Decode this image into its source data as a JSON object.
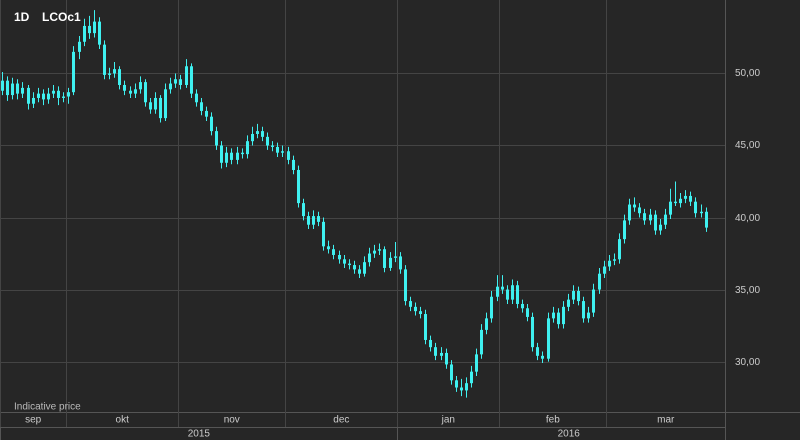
{
  "chart_data": {
    "type": "candlestick",
    "interval": "1D",
    "symbol": "LCOc1",
    "note": "Indicative price",
    "color": "#3ff0f0",
    "xlim": [
      -0.4,
      141.8
    ],
    "ylim": [
      26.5,
      55.1
    ],
    "yticks": [
      {
        "value": 30,
        "label": "30,00"
      },
      {
        "value": 35,
        "label": "35,00"
      },
      {
        "value": 40,
        "label": "40,00"
      },
      {
        "value": 45,
        "label": "45,00"
      },
      {
        "value": 50,
        "label": "50,00"
      }
    ],
    "xticks": [
      {
        "value": 0,
        "label": "sep"
      },
      {
        "value": 13,
        "label": "okt"
      },
      {
        "value": 35,
        "label": "nov"
      },
      {
        "value": 56,
        "label": "dec"
      },
      {
        "value": 78,
        "label": "jan"
      },
      {
        "value": 98,
        "label": "feb"
      },
      {
        "value": 119,
        "label": "mar"
      }
    ],
    "years": [
      {
        "value": 0,
        "label": "2015"
      },
      {
        "value": 78,
        "label": "2016"
      }
    ],
    "ohlc": [
      [
        48.8,
        50.1,
        48.5,
        49.5
      ],
      [
        49.5,
        49.8,
        48.1,
        48.5
      ],
      [
        48.5,
        49.7,
        48.2,
        49.3
      ],
      [
        49.3,
        49.6,
        48.2,
        48.6
      ],
      [
        48.6,
        49.4,
        48.3,
        49.0
      ],
      [
        49.0,
        49.2,
        47.5,
        47.9
      ],
      [
        47.9,
        48.7,
        47.6,
        48.3
      ],
      [
        48.3,
        49.0,
        48.0,
        48.6
      ],
      [
        48.6,
        48.9,
        47.8,
        48.2
      ],
      [
        48.2,
        49.0,
        47.9,
        48.6
      ],
      [
        48.6,
        49.2,
        48.3,
        48.8
      ],
      [
        48.8,
        49.1,
        47.8,
        48.3
      ],
      [
        48.3,
        48.7,
        48.0,
        48.4
      ],
      [
        48.4,
        49.0,
        47.9,
        48.7
      ],
      [
        48.7,
        51.9,
        48.5,
        51.5
      ],
      [
        51.5,
        52.6,
        51.0,
        52.2
      ],
      [
        52.2,
        53.8,
        51.9,
        53.3
      ],
      [
        53.3,
        54.0,
        52.4,
        52.8
      ],
      [
        52.8,
        54.4,
        52.5,
        53.6
      ],
      [
        53.6,
        53.9,
        51.7,
        52.0
      ],
      [
        52.0,
        52.3,
        49.6,
        49.9
      ],
      [
        49.9,
        50.4,
        49.6,
        50.0
      ],
      [
        50.0,
        50.8,
        49.7,
        50.3
      ],
      [
        50.3,
        50.5,
        48.9,
        49.2
      ],
      [
        49.2,
        49.5,
        48.5,
        48.8
      ],
      [
        48.8,
        49.1,
        48.3,
        48.6
      ],
      [
        48.6,
        49.3,
        48.3,
        48.9
      ],
      [
        48.9,
        49.8,
        48.6,
        49.4
      ],
      [
        49.4,
        49.6,
        47.7,
        48.0
      ],
      [
        48.0,
        48.3,
        47.2,
        47.5
      ],
      [
        47.5,
        48.7,
        47.2,
        48.3
      ],
      [
        48.3,
        48.5,
        46.6,
        46.9
      ],
      [
        46.9,
        49.3,
        46.7,
        48.9
      ],
      [
        48.9,
        49.7,
        48.6,
        49.3
      ],
      [
        49.3,
        50.0,
        49.0,
        49.6
      ],
      [
        49.6,
        49.9,
        48.9,
        49.2
      ],
      [
        49.2,
        51.0,
        49.0,
        50.5
      ],
      [
        50.5,
        50.7,
        48.3,
        48.6
      ],
      [
        48.6,
        48.9,
        47.7,
        48.0
      ],
      [
        48.0,
        48.3,
        47.1,
        47.4
      ],
      [
        47.4,
        47.7,
        46.7,
        47.0
      ],
      [
        47.0,
        47.3,
        45.7,
        46.0
      ],
      [
        46.0,
        46.3,
        44.7,
        45.0
      ],
      [
        45.0,
        45.3,
        43.4,
        43.8
      ],
      [
        43.8,
        44.9,
        43.5,
        44.5
      ],
      [
        44.5,
        44.8,
        43.7,
        44.0
      ],
      [
        44.0,
        44.9,
        43.7,
        44.5
      ],
      [
        44.5,
        44.8,
        44.1,
        44.4
      ],
      [
        44.4,
        45.7,
        44.1,
        45.3
      ],
      [
        45.3,
        46.3,
        45.0,
        45.8
      ],
      [
        45.8,
        46.5,
        45.5,
        46.0
      ],
      [
        46.0,
        46.3,
        45.3,
        45.6
      ],
      [
        45.6,
        45.9,
        44.7,
        45.0
      ],
      [
        45.0,
        45.3,
        44.6,
        44.9
      ],
      [
        44.9,
        45.2,
        44.2,
        44.5
      ],
      [
        44.5,
        45.0,
        44.2,
        44.6
      ],
      [
        44.6,
        44.9,
        43.7,
        44.0
      ],
      [
        44.0,
        44.3,
        43.0,
        43.3
      ],
      [
        43.3,
        43.6,
        40.7,
        41.0
      ],
      [
        41.0,
        41.3,
        39.8,
        40.1
      ],
      [
        40.1,
        40.4,
        39.2,
        39.5
      ],
      [
        39.5,
        40.5,
        39.2,
        40.1
      ],
      [
        40.1,
        40.4,
        39.4,
        39.7
      ],
      [
        39.7,
        40.0,
        37.7,
        38.0
      ],
      [
        38.0,
        38.4,
        37.5,
        37.8
      ],
      [
        37.8,
        38.1,
        37.1,
        37.4
      ],
      [
        37.4,
        37.7,
        36.8,
        37.1
      ],
      [
        37.1,
        37.4,
        36.5,
        36.8
      ],
      [
        36.8,
        37.1,
        36.4,
        36.7
      ],
      [
        36.7,
        37.0,
        36.1,
        36.4
      ],
      [
        36.4,
        36.7,
        35.8,
        36.1
      ],
      [
        36.1,
        37.3,
        35.9,
        36.9
      ],
      [
        36.9,
        37.9,
        36.6,
        37.5
      ],
      [
        37.5,
        38.1,
        37.2,
        37.7
      ],
      [
        37.7,
        38.2,
        37.4,
        37.8
      ],
      [
        37.8,
        38.0,
        36.2,
        36.5
      ],
      [
        36.5,
        37.6,
        36.3,
        37.2
      ],
      [
        37.2,
        38.3,
        36.9,
        37.3
      ],
      [
        37.3,
        37.6,
        36.1,
        36.4
      ],
      [
        36.4,
        36.7,
        33.9,
        34.2
      ],
      [
        34.2,
        34.5,
        33.5,
        33.8
      ],
      [
        33.8,
        34.1,
        33.2,
        33.5
      ],
      [
        33.5,
        33.8,
        33.0,
        33.3
      ],
      [
        33.3,
        33.6,
        31.2,
        31.5
      ],
      [
        31.5,
        31.8,
        30.7,
        31.0
      ],
      [
        31.0,
        31.3,
        30.1,
        30.4
      ],
      [
        30.4,
        31.0,
        30.1,
        30.6
      ],
      [
        30.6,
        30.9,
        29.5,
        29.8
      ],
      [
        29.8,
        30.1,
        28.4,
        28.7
      ],
      [
        28.7,
        29.0,
        27.9,
        28.2
      ],
      [
        28.2,
        28.8,
        27.6,
        28.0
      ],
      [
        28.0,
        28.9,
        27.5,
        28.5
      ],
      [
        28.5,
        29.7,
        28.2,
        29.3
      ],
      [
        29.3,
        30.9,
        29.0,
        30.5
      ],
      [
        30.5,
        32.6,
        30.2,
        32.2
      ],
      [
        32.2,
        33.4,
        31.9,
        33.0
      ],
      [
        33.0,
        34.9,
        32.7,
        34.5
      ],
      [
        34.5,
        36.0,
        34.2,
        35.2
      ],
      [
        35.2,
        36.0,
        34.7,
        35.0
      ],
      [
        35.0,
        35.3,
        34.0,
        34.3
      ],
      [
        34.3,
        35.7,
        34.0,
        35.3
      ],
      [
        35.3,
        35.6,
        33.7,
        34.0
      ],
      [
        34.0,
        34.3,
        33.4,
        33.7
      ],
      [
        33.7,
        34.0,
        32.8,
        33.1
      ],
      [
        33.1,
        33.4,
        30.7,
        31.0
      ],
      [
        31.0,
        31.3,
        30.1,
        30.4
      ],
      [
        30.4,
        30.7,
        29.9,
        30.2
      ],
      [
        30.2,
        33.4,
        30.0,
        33.0
      ],
      [
        33.0,
        33.8,
        32.7,
        33.4
      ],
      [
        33.4,
        33.7,
        32.3,
        32.6
      ],
      [
        32.6,
        34.2,
        32.3,
        33.8
      ],
      [
        33.8,
        34.7,
        33.5,
        34.3
      ],
      [
        34.3,
        35.3,
        34.0,
        34.9
      ],
      [
        34.9,
        35.2,
        33.9,
        34.2
      ],
      [
        34.2,
        34.5,
        32.7,
        33.0
      ],
      [
        33.0,
        33.8,
        32.7,
        33.4
      ],
      [
        33.4,
        35.4,
        33.1,
        35.0
      ],
      [
        35.0,
        36.5,
        34.7,
        36.1
      ],
      [
        36.1,
        37.0,
        35.8,
        36.6
      ],
      [
        36.6,
        37.4,
        36.3,
        37.0
      ],
      [
        37.0,
        37.5,
        36.7,
        37.1
      ],
      [
        37.1,
        38.9,
        36.8,
        38.5
      ],
      [
        38.5,
        40.2,
        38.2,
        39.8
      ],
      [
        39.8,
        41.3,
        39.5,
        40.9
      ],
      [
        40.9,
        41.4,
        40.4,
        40.7
      ],
      [
        40.7,
        41.0,
        40.0,
        40.3
      ],
      [
        40.3,
        40.6,
        39.5,
        39.8
      ],
      [
        39.8,
        40.6,
        39.5,
        40.2
      ],
      [
        40.2,
        40.5,
        38.8,
        39.1
      ],
      [
        39.1,
        39.9,
        38.8,
        39.5
      ],
      [
        39.5,
        40.6,
        39.2,
        40.2
      ],
      [
        40.2,
        42.0,
        39.9,
        41.1
      ],
      [
        41.1,
        42.5,
        40.8,
        41.0
      ],
      [
        41.0,
        41.7,
        40.7,
        41.3
      ],
      [
        41.3,
        41.9,
        41.0,
        41.5
      ],
      [
        41.5,
        41.8,
        40.8,
        41.1
      ],
      [
        41.1,
        41.4,
        40.0,
        40.3
      ],
      [
        40.3,
        40.9,
        40.0,
        40.4
      ],
      [
        40.4,
        40.7,
        39.0,
        39.3
      ]
    ]
  }
}
